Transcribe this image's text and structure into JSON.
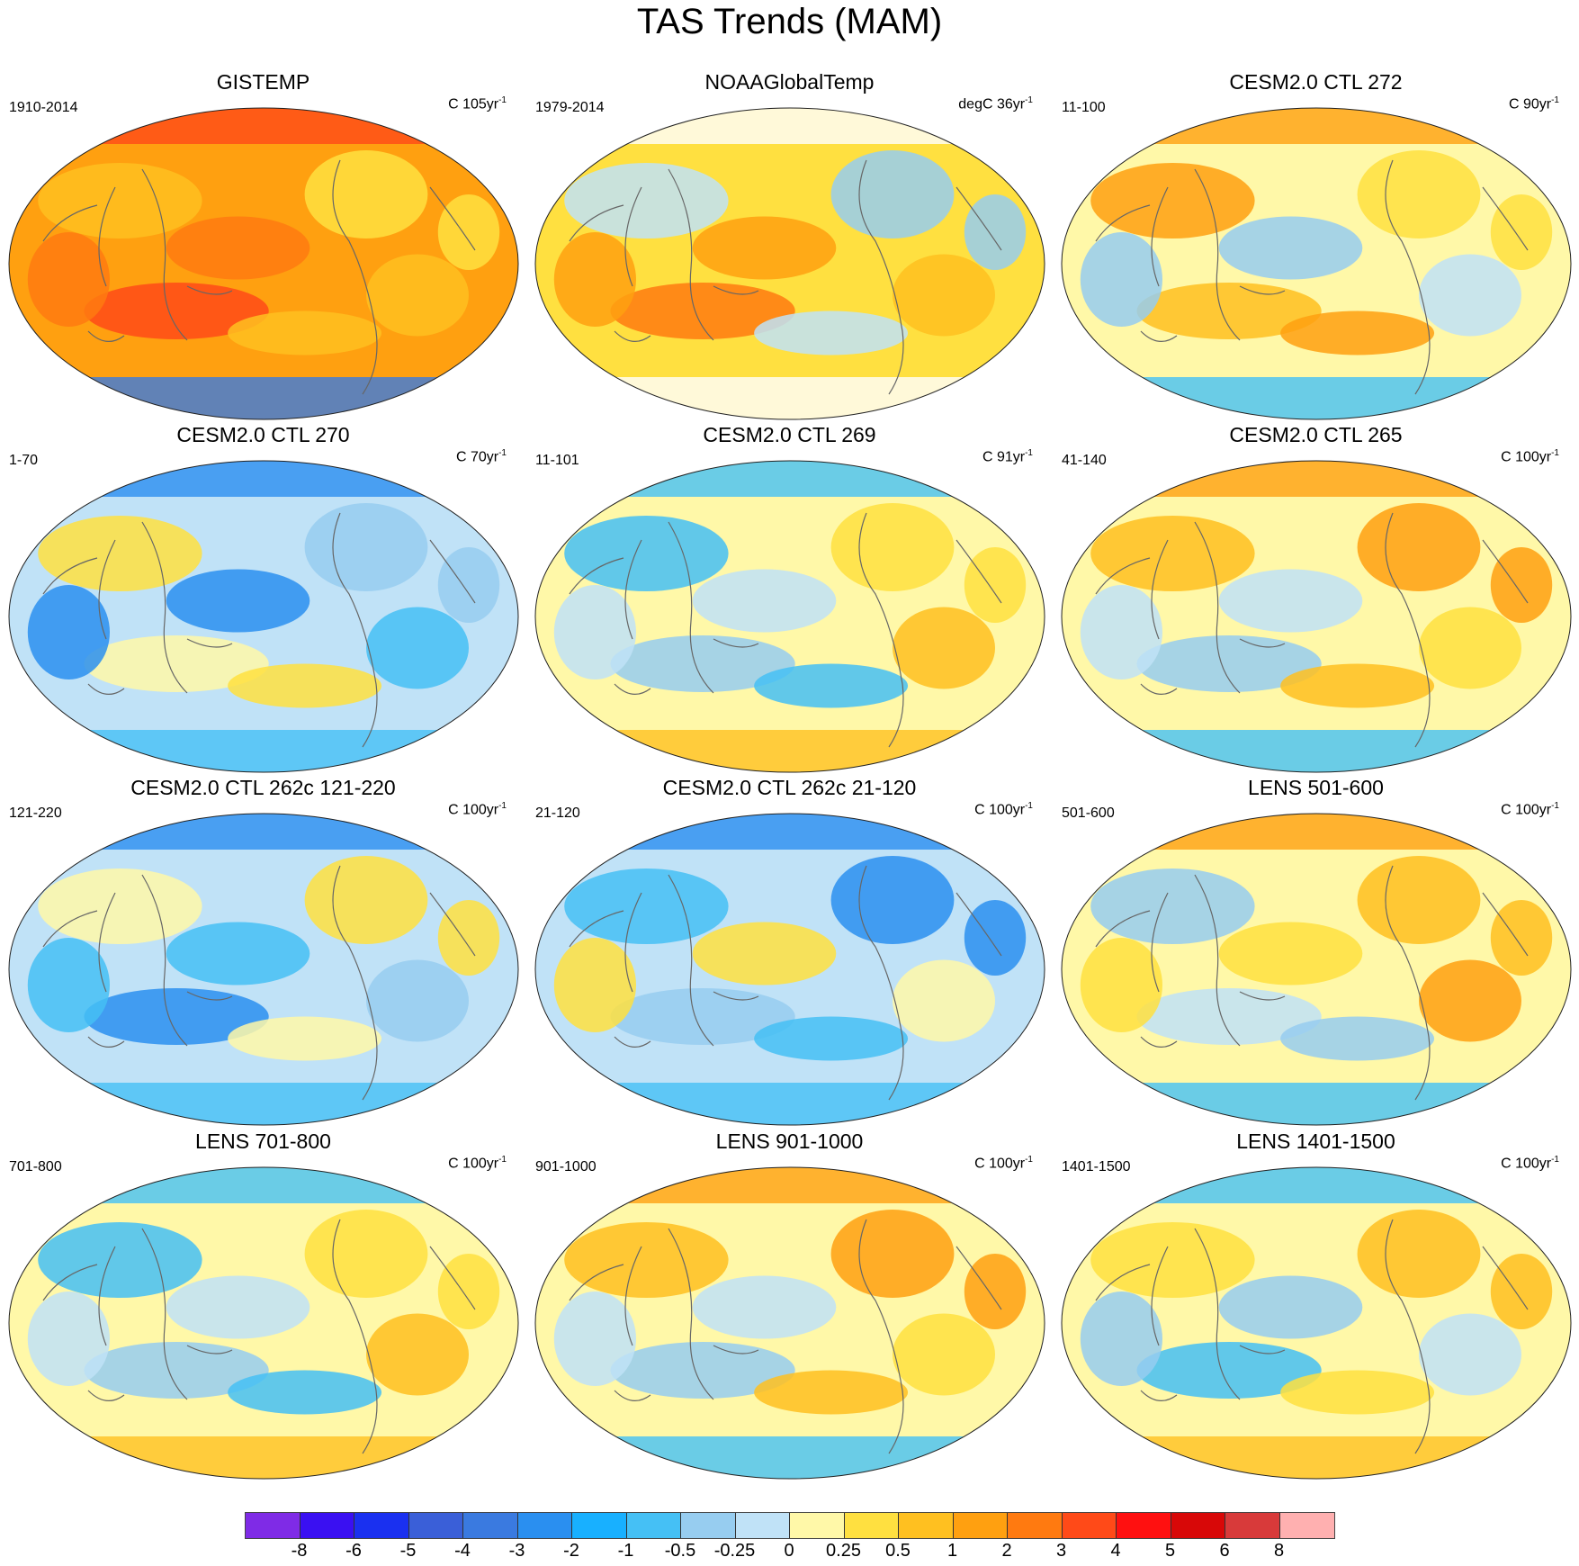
{
  "title": "TAS Trends (MAM)",
  "panels": [
    {
      "title": "GISTEMP",
      "left_label": "1910-2014",
      "unit": "C",
      "years": "105",
      "theme": "warm"
    },
    {
      "title": "NOAAGlobalTemp",
      "left_label": "1979-2014",
      "unit": "degC",
      "years": "36",
      "theme": "noaa"
    },
    {
      "title": "CESM2.0 CTL 272",
      "left_label": "11-100",
      "unit": "C",
      "years": "90",
      "theme": "mixed-warm"
    },
    {
      "title": "CESM2.0 CTL 270",
      "left_label": "1-70",
      "unit": "C",
      "years": "70",
      "theme": "cool"
    },
    {
      "title": "CESM2.0 CTL 269",
      "left_label": "11-101",
      "unit": "C",
      "years": "91",
      "theme": "mixed"
    },
    {
      "title": "CESM2.0 CTL 265",
      "left_label": "41-140",
      "unit": "C",
      "years": "100",
      "theme": "mixed-warm"
    },
    {
      "title": "CESM2.0 CTL 262c 121-220",
      "left_label": "121-220",
      "unit": "C",
      "years": "100",
      "theme": "cool"
    },
    {
      "title": "CESM2.0 CTL 262c 21-120",
      "left_label": "21-120",
      "unit": "C",
      "years": "100",
      "theme": "cool"
    },
    {
      "title": "LENS 501-600",
      "left_label": "501-600",
      "unit": "C",
      "years": "100",
      "theme": "mixed-warm"
    },
    {
      "title": "LENS 701-800",
      "left_label": "701-800",
      "unit": "C",
      "years": "100",
      "theme": "mixed"
    },
    {
      "title": "LENS 901-1000",
      "left_label": "901-1000",
      "unit": "C",
      "years": "100",
      "theme": "mixed-warm"
    },
    {
      "title": "LENS 1401-1500",
      "left_label": "1401-1500",
      "unit": "C",
      "years": "100",
      "theme": "mixed"
    }
  ],
  "unit_suffix": "yr",
  "unit_exponent": "-1",
  "colorbar": {
    "colors": [
      "#7f2be6",
      "#3a10f2",
      "#1a30f0",
      "#3a5fd8",
      "#3a7ae0",
      "#2a8ff0",
      "#18b0ff",
      "#45c0f5",
      "#97cdf0",
      "#c0e2f7",
      "#fff8a8",
      "#ffe040",
      "#ffc020",
      "#ffa010",
      "#ff7a10",
      "#ff4a18",
      "#ff1010",
      "#d80808",
      "#d83a3a",
      "#ffb0b0"
    ],
    "labels": [
      "-8",
      "-6",
      "-5",
      "-4",
      "-3",
      "-2",
      "-1",
      "-0.5",
      "-0.25",
      "0",
      "0.25",
      "0.5",
      "1",
      "2",
      "3",
      "4",
      "5",
      "6",
      "8"
    ]
  }
}
